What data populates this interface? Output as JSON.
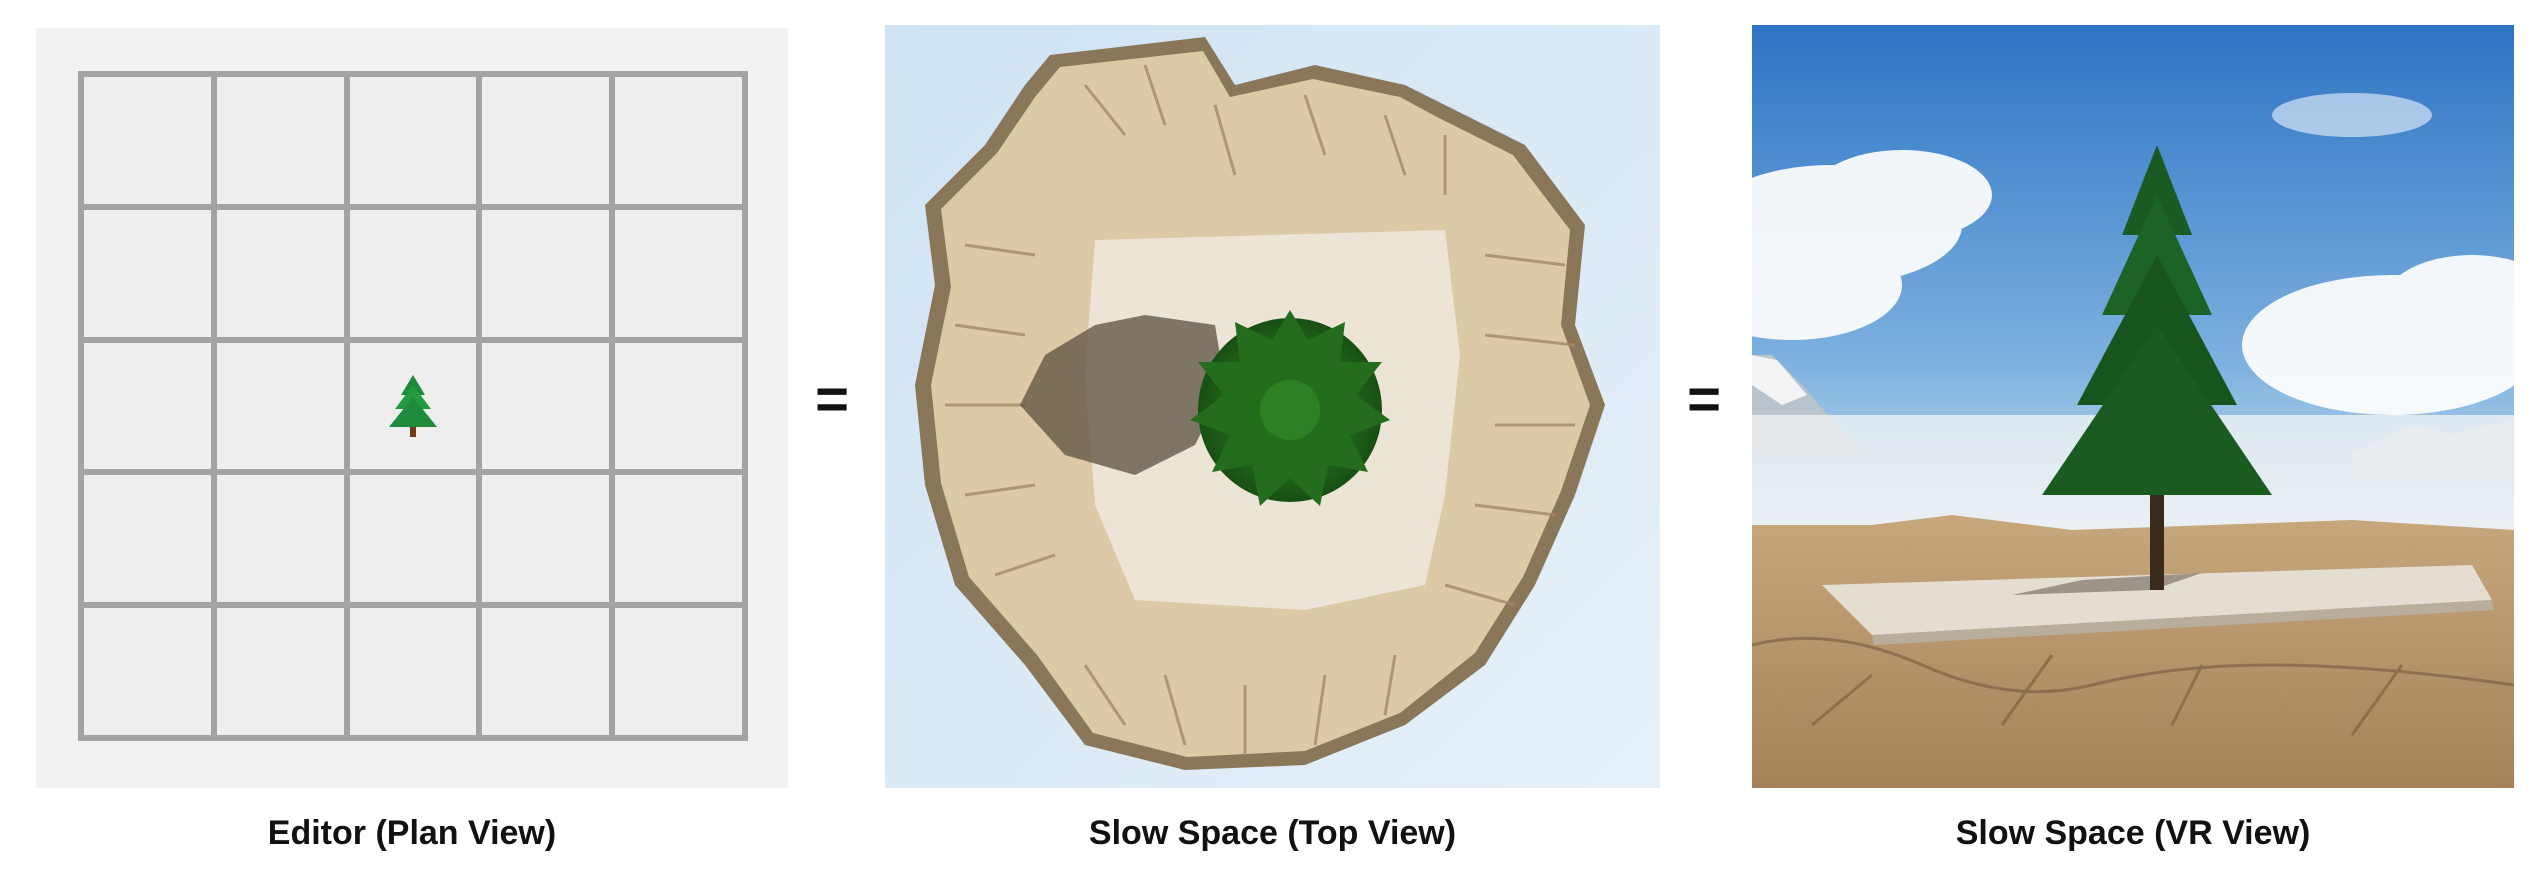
{
  "panels": [
    {
      "id": "editor",
      "caption": "Editor (Plan View)"
    },
    {
      "id": "top",
      "caption": "Slow Space (Top View)"
    },
    {
      "id": "vr",
      "caption": "Slow Space (VR View)"
    }
  ],
  "separators": [
    "=",
    "="
  ],
  "editor_grid": {
    "rows": 5,
    "cols": 5,
    "tree_cell": {
      "row": 2,
      "col": 2
    }
  },
  "colors": {
    "grid_line": "#a3a3a3",
    "cell": "#eeeeee",
    "sky": "#3b7fc4",
    "rock": "#d8c6a4",
    "tree": "#1f6b2a"
  }
}
